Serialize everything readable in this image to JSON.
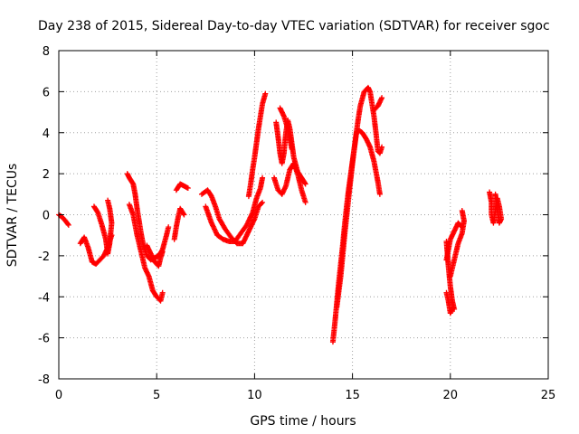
{
  "chart_data": {
    "type": "scatter",
    "title": "Day 238 of 2015, Sidereal Day-to-day VTEC variation (SDTVAR) for receiver sgoc",
    "xlabel": "GPS time / hours",
    "ylabel": "SDTVAR / TECUs",
    "xlim": [
      0,
      25
    ],
    "ylim": [
      -8,
      8
    ],
    "xticks": [
      0,
      5,
      10,
      15,
      20,
      25
    ],
    "yticks": [
      -8,
      -6,
      -4,
      -2,
      0,
      2,
      4,
      6,
      8
    ],
    "grid": true,
    "marker": "+",
    "series_color": "#ff0000",
    "segments": [
      [
        [
          0.0,
          0.0
        ],
        [
          0.15,
          -0.1
        ],
        [
          0.3,
          -0.25
        ],
        [
          0.5,
          -0.5
        ]
      ],
      [
        [
          1.1,
          -1.4
        ],
        [
          1.3,
          -1.1
        ],
        [
          1.5,
          -1.6
        ],
        [
          1.7,
          -2.3
        ],
        [
          1.9,
          -2.4
        ],
        [
          2.1,
          -2.2
        ],
        [
          2.3,
          -2.0
        ],
        [
          2.5,
          -1.6
        ],
        [
          2.7,
          -1.0
        ]
      ],
      [
        [
          1.8,
          0.4
        ],
        [
          2.0,
          0.1
        ],
        [
          2.2,
          -0.5
        ],
        [
          2.4,
          -1.2
        ],
        [
          2.5,
          -1.9
        ],
        [
          2.6,
          -1.4
        ],
        [
          2.7,
          -0.4
        ],
        [
          2.6,
          0.3
        ],
        [
          2.5,
          0.7
        ]
      ],
      [
        [
          3.5,
          2.0
        ],
        [
          3.6,
          1.8
        ],
        [
          3.8,
          1.5
        ],
        [
          3.9,
          1.0
        ],
        [
          4.0,
          0.3
        ],
        [
          4.1,
          -0.3
        ],
        [
          4.2,
          -0.9
        ],
        [
          4.3,
          -1.4
        ],
        [
          4.5,
          -2.0
        ],
        [
          4.7,
          -2.2
        ],
        [
          4.9,
          -2.1
        ],
        [
          5.1,
          -2.0
        ],
        [
          5.3,
          -1.7
        ],
        [
          5.5,
          -1.0
        ],
        [
          5.6,
          -0.6
        ]
      ],
      [
        [
          3.6,
          0.5
        ],
        [
          3.8,
          0.0
        ],
        [
          4.0,
          -1.0
        ],
        [
          4.2,
          -1.8
        ],
        [
          4.4,
          -2.6
        ],
        [
          4.6,
          -3.0
        ],
        [
          4.8,
          -3.7
        ],
        [
          5.0,
          -4.0
        ],
        [
          5.2,
          -4.2
        ],
        [
          5.3,
          -3.8
        ]
      ],
      [
        [
          4.5,
          -1.5
        ],
        [
          4.7,
          -1.9
        ],
        [
          4.9,
          -2.3
        ],
        [
          5.1,
          -2.5
        ],
        [
          5.2,
          -2.1
        ],
        [
          5.3,
          -1.8
        ]
      ],
      [
        [
          5.9,
          -1.2
        ],
        [
          6.0,
          -0.6
        ],
        [
          6.1,
          -0.1
        ],
        [
          6.2,
          0.3
        ],
        [
          6.4,
          0.0
        ]
      ],
      [
        [
          6.0,
          1.2
        ],
        [
          6.2,
          1.5
        ],
        [
          6.4,
          1.4
        ],
        [
          6.6,
          1.3
        ]
      ],
      [
        [
          7.3,
          1.0
        ],
        [
          7.6,
          1.2
        ],
        [
          7.8,
          0.9
        ],
        [
          8.0,
          0.4
        ],
        [
          8.2,
          -0.2
        ],
        [
          8.5,
          -0.7
        ],
        [
          8.8,
          -1.1
        ],
        [
          9.1,
          -1.4
        ],
        [
          9.4,
          -1.4
        ],
        [
          9.6,
          -1.0
        ],
        [
          9.8,
          -0.6
        ],
        [
          10.0,
          -0.2
        ],
        [
          10.2,
          0.4
        ],
        [
          10.4,
          0.6
        ]
      ],
      [
        [
          7.5,
          0.4
        ],
        [
          7.8,
          -0.4
        ],
        [
          8.1,
          -1.0
        ],
        [
          8.4,
          -1.2
        ],
        [
          8.7,
          -1.3
        ],
        [
          9.0,
          -1.3
        ],
        [
          9.3,
          -0.9
        ],
        [
          9.6,
          -0.5
        ],
        [
          9.9,
          0.1
        ],
        [
          10.1,
          0.8
        ],
        [
          10.3,
          1.3
        ],
        [
          10.4,
          1.8
        ]
      ],
      [
        [
          9.7,
          0.9
        ],
        [
          9.8,
          1.5
        ],
        [
          9.9,
          2.2
        ],
        [
          10.0,
          2.8
        ],
        [
          10.1,
          3.5
        ],
        [
          10.2,
          4.2
        ],
        [
          10.3,
          4.8
        ],
        [
          10.4,
          5.4
        ],
        [
          10.55,
          5.9
        ]
      ],
      [
        [
          11.1,
          4.5
        ],
        [
          11.2,
          3.8
        ],
        [
          11.3,
          3.0
        ],
        [
          11.4,
          2.5
        ],
        [
          11.5,
          3.0
        ],
        [
          11.6,
          4.0
        ],
        [
          11.7,
          4.6
        ],
        [
          11.8,
          4.2
        ],
        [
          11.9,
          3.5
        ],
        [
          12.0,
          2.8
        ],
        [
          12.2,
          2.1
        ],
        [
          12.4,
          1.8
        ],
        [
          12.6,
          1.5
        ]
      ],
      [
        [
          11.0,
          1.8
        ],
        [
          11.2,
          1.2
        ],
        [
          11.4,
          1.0
        ],
        [
          11.6,
          1.4
        ],
        [
          11.8,
          2.2
        ],
        [
          12.0,
          2.5
        ],
        [
          12.2,
          2.0
        ],
        [
          12.4,
          1.2
        ],
        [
          12.6,
          0.6
        ]
      ],
      [
        [
          11.3,
          5.2
        ],
        [
          11.5,
          4.8
        ],
        [
          11.7,
          4.2
        ],
        [
          11.9,
          3.2
        ]
      ],
      [
        [
          14.0,
          -6.2
        ],
        [
          14.1,
          -5.3
        ],
        [
          14.2,
          -4.3
        ],
        [
          14.3,
          -3.3
        ],
        [
          14.4,
          -2.4
        ],
        [
          14.5,
          -1.5
        ],
        [
          14.6,
          -0.5
        ],
        [
          14.7,
          0.4
        ],
        [
          14.8,
          1.2
        ],
        [
          14.9,
          1.9
        ],
        [
          15.0,
          2.6
        ],
        [
          15.1,
          3.3
        ],
        [
          15.2,
          4.0
        ],
        [
          15.35,
          4.1
        ],
        [
          15.5,
          4.0
        ],
        [
          15.7,
          3.7
        ],
        [
          15.9,
          3.3
        ],
        [
          16.1,
          2.6
        ],
        [
          16.3,
          1.6
        ],
        [
          16.4,
          1.0
        ]
      ],
      [
        [
          14.2,
          -4.5
        ],
        [
          14.4,
          -3.0
        ],
        [
          14.6,
          -1.0
        ],
        [
          14.8,
          0.8
        ],
        [
          15.0,
          2.5
        ],
        [
          15.2,
          4.0
        ],
        [
          15.3,
          4.7
        ],
        [
          15.4,
          5.3
        ],
        [
          15.6,
          6.0
        ],
        [
          15.8,
          6.2
        ],
        [
          15.9,
          6.0
        ],
        [
          16.0,
          5.4
        ],
        [
          16.1,
          4.8
        ],
        [
          16.2,
          4.0
        ],
        [
          16.3,
          3.1
        ],
        [
          16.4,
          3.0
        ],
        [
          16.5,
          3.3
        ]
      ],
      [
        [
          16.1,
          5.1
        ],
        [
          16.3,
          5.3
        ],
        [
          16.5,
          5.7
        ]
      ],
      [
        [
          19.8,
          -1.3
        ],
        [
          19.9,
          -2.5
        ],
        [
          20.0,
          -3.5
        ],
        [
          20.1,
          -4.2
        ],
        [
          20.2,
          -4.6
        ]
      ],
      [
        [
          19.8,
          -3.8
        ],
        [
          19.9,
          -4.2
        ],
        [
          20.0,
          -4.8
        ],
        [
          20.15,
          -4.5
        ]
      ],
      [
        [
          19.8,
          -2.2
        ],
        [
          20.0,
          -1.2
        ],
        [
          20.2,
          -0.8
        ],
        [
          20.4,
          -0.4
        ],
        [
          20.6,
          -0.6
        ]
      ],
      [
        [
          20.0,
          -3.0
        ],
        [
          20.2,
          -2.2
        ],
        [
          20.4,
          -1.4
        ],
        [
          20.6,
          -0.9
        ],
        [
          20.7,
          -0.3
        ],
        [
          20.6,
          0.2
        ]
      ],
      [
        [
          22.0,
          1.1
        ],
        [
          22.1,
          0.6
        ],
        [
          22.1,
          0.0
        ],
        [
          22.2,
          -0.4
        ],
        [
          22.3,
          0.2
        ],
        [
          22.4,
          0.8
        ],
        [
          22.5,
          0.4
        ],
        [
          22.6,
          -0.2
        ],
        [
          22.5,
          -0.4
        ],
        [
          22.3,
          1.0
        ]
      ]
    ]
  }
}
